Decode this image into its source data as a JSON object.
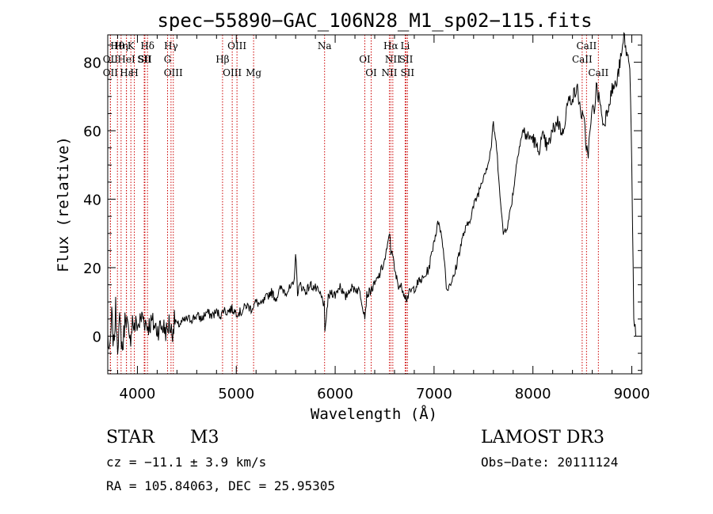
{
  "chart_data": {
    "type": "line",
    "title": "spec−55890−GAC_106N28_M1_sp02−115.fits",
    "xlabel": "Wavelength (Å)",
    "ylabel": "Flux (relative)",
    "xlim": [
      3700,
      9100
    ],
    "ylim": [
      -11,
      88
    ],
    "x_ticks": [
      4000,
      5000,
      6000,
      7000,
      8000,
      9000
    ],
    "x_tick_labels": [
      "4000",
      "5000",
      "6000",
      "7000",
      "8000",
      "9000"
    ],
    "y_ticks": [
      0,
      20,
      40,
      60,
      80
    ],
    "y_tick_labels": [
      "0",
      "20",
      "40",
      "60",
      "80"
    ],
    "grid": false,
    "spectrum": {
      "name": "flux",
      "x": [
        3700,
        3720,
        3740,
        3760,
        3780,
        3800,
        3820,
        3850,
        3880,
        3900,
        3920,
        3950,
        3970,
        3990,
        4010,
        4050,
        4100,
        4150,
        4200,
        4250,
        4280,
        4300,
        4320,
        4350,
        4380,
        4400,
        4450,
        4500,
        4550,
        4600,
        4650,
        4700,
        4750,
        4800,
        4850,
        4870,
        4900,
        4950,
        5000,
        5050,
        5100,
        5150,
        5200,
        5250,
        5300,
        5350,
        5400,
        5450,
        5500,
        5550,
        5580,
        5600,
        5620,
        5650,
        5700,
        5750,
        5800,
        5850,
        5880,
        5890,
        5896,
        5910,
        5930,
        5960,
        6000,
        6050,
        6100,
        6150,
        6200,
        6250,
        6300,
        6320,
        6350,
        6400,
        6450,
        6500,
        6530,
        6550,
        6563,
        6575,
        6600,
        6640,
        6680,
        6720,
        6760,
        6800,
        6850,
        6900,
        6950,
        7000,
        7050,
        7100,
        7130,
        7150,
        7200,
        7250,
        7300,
        7350,
        7400,
        7450,
        7500,
        7540,
        7560,
        7580,
        7600,
        7620,
        7640,
        7660,
        7680,
        7700,
        7750,
        7800,
        7850,
        7900,
        7950,
        8000,
        8050,
        8100,
        8150,
        8200,
        8250,
        8300,
        8350,
        8400,
        8450,
        8480,
        8500,
        8520,
        8540,
        8560,
        8580,
        8600,
        8620,
        8640,
        8660,
        8680,
        8700,
        8720,
        8750,
        8800,
        8850,
        8880,
        8900,
        8920,
        8950,
        8980,
        9000,
        9020,
        9040
      ],
      "y": [
        0,
        -6,
        6,
        -3,
        8,
        -2,
        4,
        -4,
        7,
        3,
        -3,
        5,
        2,
        4,
        3,
        6,
        3,
        4,
        2,
        3,
        2,
        1,
        4,
        1,
        5,
        3,
        4,
        5,
        5,
        6,
        5,
        7,
        6,
        7,
        6,
        8,
        7,
        8,
        7,
        7,
        9,
        8,
        10,
        9,
        11,
        13,
        11,
        14,
        13,
        14,
        15,
        24,
        13,
        15,
        13,
        15,
        14,
        12,
        10,
        9,
        0,
        6,
        11,
        13,
        12,
        15,
        11,
        14,
        14,
        13,
        6,
        12,
        13,
        15,
        18,
        22,
        26,
        31,
        24,
        26,
        19,
        15,
        14,
        11,
        13,
        14,
        16,
        17,
        20,
        28,
        34,
        24,
        13,
        15,
        17,
        24,
        30,
        33,
        38,
        42,
        47,
        50,
        52,
        56,
        62,
        58,
        52,
        45,
        36,
        30,
        33,
        42,
        54,
        60,
        58,
        58,
        54,
        58,
        55,
        60,
        63,
        59,
        68,
        70,
        72,
        66,
        64,
        62,
        55,
        54,
        60,
        66,
        66,
        73,
        70,
        69,
        63,
        62,
        66,
        72,
        74,
        80,
        82,
        88,
        82,
        80,
        50,
        4,
        0
      ]
    },
    "lines": [
      {
        "label": "Hθ",
        "wavelength": 3798
      },
      {
        "label": "OII",
        "wavelength": 3727
      },
      {
        "label": "OII",
        "wavelength": 3727
      },
      {
        "label": "Hη",
        "wavelength": 3835
      },
      {
        "label": "HeI",
        "wavelength": 3889
      },
      {
        "label": "Hε",
        "wavelength": 3889
      },
      {
        "label": "K",
        "wavelength": 3934
      },
      {
        "label": "SII",
        "wavelength": 4069
      },
      {
        "label": "H",
        "wavelength": 3969
      },
      {
        "label": "Hδ",
        "wavelength": 4102
      },
      {
        "label": "SII",
        "wavelength": 4076
      },
      {
        "label": "OIII",
        "wavelength": 4363
      },
      {
        "label": "Hγ",
        "wavelength": 4340
      },
      {
        "label": "G",
        "wavelength": 4305
      },
      {
        "label": "OIII",
        "wavelength": 4959
      },
      {
        "label": "OIII",
        "wavelength": 5007
      },
      {
        "label": "Hβ",
        "wavelength": 4861
      },
      {
        "label": "Mg",
        "wavelength": 5175
      },
      {
        "label": "Na",
        "wavelength": 5893
      },
      {
        "label": "OI",
        "wavelength": 6300
      },
      {
        "label": "OI",
        "wavelength": 6364
      },
      {
        "label": "Hα",
        "wavelength": 6563
      },
      {
        "label": "SII",
        "wavelength": 6717
      },
      {
        "label": "NII",
        "wavelength": 6548
      },
      {
        "label": "Li",
        "wavelength": 6708
      },
      {
        "label": "NII",
        "wavelength": 6583
      },
      {
        "label": "SII",
        "wavelength": 6731
      },
      {
        "label": "CaII",
        "wavelength": 8542
      },
      {
        "label": "CaII",
        "wavelength": 8498
      },
      {
        "label": "CaII",
        "wavelength": 8662
      }
    ],
    "colors": {
      "spectrum": "#000000",
      "line_markers": "#cc0000",
      "text": "#000000"
    }
  },
  "info": {
    "object_class": "STAR",
    "subclass": "M3",
    "survey": "LAMOST DR3",
    "redshift_text": "cz = −11.1 ± 3.9 km/s",
    "obs_date_text": "Obs−Date: 20111124",
    "coords_text": "RA = 105.84063, DEC =  25.95305"
  }
}
